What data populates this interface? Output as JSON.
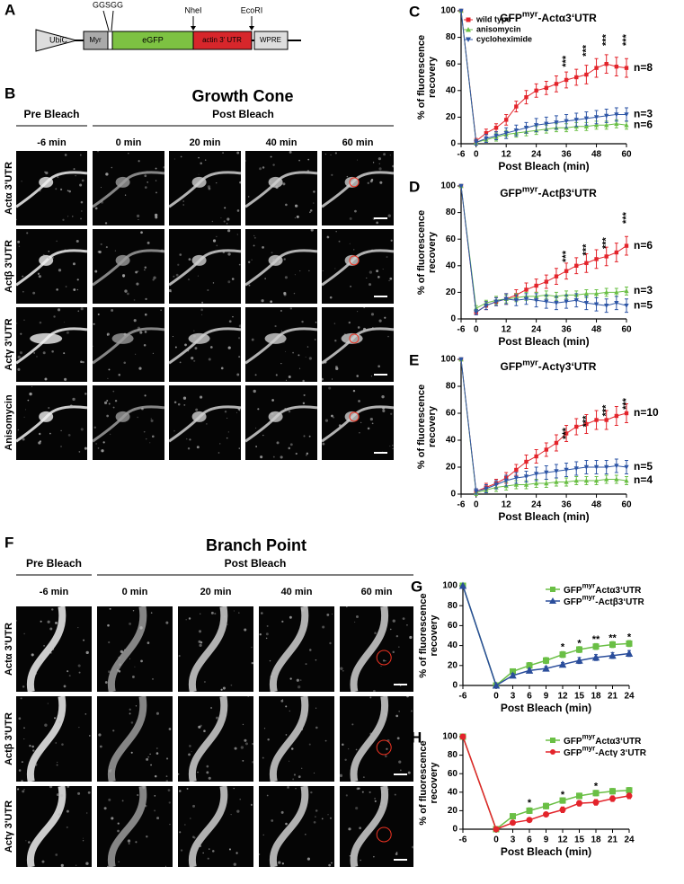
{
  "construct": {
    "letter": "A",
    "ubic": "UbiC",
    "myr": "Myr",
    "egfp": "eGFP",
    "utr": "actin 3' UTR",
    "wpre": "WPRE",
    "linker": "GGSGG",
    "nhei": "NheI",
    "ecori": "EcoRI"
  },
  "growth_cone": {
    "letter": "B",
    "title": "Growth Cone",
    "pre": "Pre Bleach",
    "post": "Post Bleach",
    "times": [
      "-6 min",
      "0 min",
      "20 min",
      "40 min",
      "60 min"
    ],
    "rows": [
      "Actα 3'UTR",
      "Actβ 3'UTR",
      "Actγ 3'UTR",
      "Anisomycin"
    ]
  },
  "branch_point": {
    "letter": "F",
    "title": "Branch Point",
    "pre": "Pre Bleach",
    "post": "Post Bleach",
    "times": [
      "-6 min",
      "0 min",
      "20 min",
      "40 min",
      "60 min"
    ],
    "rows": [
      "Actα 3'UTR",
      "Actβ 3'UTR",
      "Actγ 3'UTR"
    ]
  },
  "chart_data": [
    {
      "type": "line",
      "letter": "C",
      "title": {
        "base": "GFP",
        "sup": "myr",
        "rest": "-Actα3‘UTR"
      },
      "ylabel": [
        "% of fluorescence",
        "recovery"
      ],
      "xlabel": "Post Bleach (min)",
      "x": [
        -6,
        0,
        4,
        8,
        12,
        16,
        20,
        24,
        28,
        32,
        36,
        40,
        44,
        48,
        52,
        56,
        60
      ],
      "xlim": [
        -6,
        60
      ],
      "xticks": [
        -6,
        0,
        12,
        24,
        36,
        48,
        60
      ],
      "ylim": [
        0,
        100
      ],
      "yticks": [
        0,
        20,
        40,
        60,
        80,
        100
      ],
      "legend": "upper left",
      "series": [
        {
          "name": "wild type",
          "color": "#e3242b",
          "marker": "square",
          "n_label": "n=8",
          "values": [
            100,
            2,
            8,
            12,
            18,
            28,
            35,
            40,
            42,
            45,
            48,
            50,
            52,
            57,
            60,
            58,
            57
          ],
          "errors": [
            0,
            2,
            3,
            3,
            4,
            4,
            5,
            5,
            5,
            6,
            6,
            6,
            7,
            7,
            7,
            7,
            7
          ]
        },
        {
          "name": "anisomycin",
          "color": "#6abf45",
          "marker": "triangle-up",
          "n_label": "n=6",
          "values": [
            100,
            1,
            3,
            5,
            7,
            8,
            9,
            10,
            11,
            12,
            12,
            13,
            13,
            14,
            14,
            15,
            14
          ],
          "errors": [
            0,
            2,
            2,
            3,
            3,
            3,
            3,
            3,
            3,
            3,
            3,
            3,
            3,
            3,
            3,
            3,
            3
          ]
        },
        {
          "name": "cycloheximide",
          "color": "#2e56a6",
          "marker": "triangle-down",
          "n_label": "n=3",
          "values": [
            100,
            1,
            4,
            6,
            8,
            10,
            12,
            14,
            15,
            16,
            17,
            18,
            19,
            20,
            21,
            22,
            22
          ],
          "errors": [
            0,
            2,
            3,
            3,
            4,
            4,
            4,
            5,
            5,
            5,
            5,
            5,
            5,
            5,
            5,
            5,
            5
          ]
        }
      ],
      "annotations": [
        {
          "x": 36,
          "y": 62,
          "text": "***"
        },
        {
          "x": 44,
          "y": 70,
          "text": "***"
        },
        {
          "x": 52,
          "y": 78,
          "text": "***"
        },
        {
          "x": 60,
          "y": 78,
          "text": "***"
        }
      ]
    },
    {
      "type": "line",
      "letter": "D",
      "title": {
        "base": "GFP",
        "sup": "myr",
        "rest": "-Actβ3‘UTR"
      },
      "ylabel": [
        "% of fluorescence",
        "recovery"
      ],
      "xlabel": "Post Bleach (min)",
      "x": [
        -6,
        0,
        4,
        8,
        12,
        16,
        20,
        24,
        28,
        32,
        36,
        40,
        44,
        48,
        52,
        56,
        60
      ],
      "xlim": [
        -6,
        60
      ],
      "xticks": [
        -6,
        0,
        12,
        24,
        36,
        48,
        60
      ],
      "ylim": [
        0,
        100
      ],
      "yticks": [
        0,
        20,
        40,
        60,
        80,
        100
      ],
      "series": [
        {
          "name": "wild type",
          "color": "#e3242b",
          "marker": "square",
          "n_label": "n=6",
          "values": [
            100,
            5,
            10,
            13,
            15,
            18,
            22,
            25,
            28,
            32,
            36,
            40,
            42,
            45,
            47,
            50,
            55
          ],
          "errors": [
            0,
            2,
            3,
            3,
            4,
            4,
            5,
            5,
            5,
            6,
            6,
            6,
            7,
            7,
            7,
            7,
            7
          ]
        },
        {
          "name": "anisomycin",
          "color": "#6abf45",
          "marker": "triangle-up",
          "n_label": "n=3",
          "values": [
            100,
            8,
            12,
            14,
            15,
            16,
            17,
            17,
            18,
            17,
            18,
            18,
            19,
            19,
            20,
            20,
            21
          ],
          "errors": [
            0,
            2,
            2,
            3,
            3,
            3,
            3,
            3,
            3,
            3,
            3,
            3,
            3,
            3,
            3,
            3,
            3
          ]
        },
        {
          "name": "cycloheximide",
          "color": "#2e56a6",
          "marker": "triangle-down",
          "n_label": "n=5",
          "values": [
            100,
            5,
            10,
            13,
            15,
            14,
            15,
            14,
            13,
            12,
            13,
            14,
            12,
            11,
            10,
            12,
            10
          ],
          "errors": [
            0,
            2,
            3,
            3,
            4,
            4,
            4,
            5,
            5,
            5,
            5,
            5,
            5,
            5,
            5,
            5,
            5
          ]
        }
      ],
      "annotations": [
        {
          "x": 36,
          "y": 47,
          "text": "***"
        },
        {
          "x": 44,
          "y": 52,
          "text": "***"
        },
        {
          "x": 52,
          "y": 57,
          "text": "***"
        },
        {
          "x": 60,
          "y": 76,
          "text": "***"
        }
      ]
    },
    {
      "type": "line",
      "letter": "E",
      "title": {
        "base": "GFP",
        "sup": "myr",
        "rest": "-Actγ3‘UTR"
      },
      "ylabel": [
        "% of fluorescence",
        "recovery"
      ],
      "xlabel": "Post Bleach (min)",
      "x": [
        -6,
        0,
        4,
        8,
        12,
        16,
        20,
        24,
        28,
        32,
        36,
        40,
        44,
        48,
        52,
        56,
        60
      ],
      "xlim": [
        -6,
        60
      ],
      "xticks": [
        -6,
        0,
        12,
        24,
        36,
        48,
        60
      ],
      "ylim": [
        0,
        100
      ],
      "yticks": [
        0,
        20,
        40,
        60,
        80,
        100
      ],
      "series": [
        {
          "name": "wild type",
          "color": "#e3242b",
          "marker": "square",
          "n_label": "n=10",
          "values": [
            100,
            2,
            5,
            8,
            12,
            18,
            24,
            28,
            33,
            38,
            45,
            50,
            52,
            55,
            55,
            58,
            60
          ],
          "errors": [
            0,
            2,
            3,
            3,
            4,
            4,
            5,
            5,
            5,
            6,
            6,
            6,
            7,
            7,
            7,
            7,
            7
          ]
        },
        {
          "name": "anisomycin",
          "color": "#6abf45",
          "marker": "triangle-up",
          "n_label": "n=4",
          "values": [
            100,
            1,
            3,
            5,
            6,
            7,
            7,
            8,
            8,
            9,
            9,
            10,
            10,
            10,
            11,
            11,
            10
          ],
          "errors": [
            0,
            2,
            2,
            3,
            3,
            3,
            3,
            3,
            3,
            3,
            3,
            3,
            3,
            3,
            3,
            3,
            3
          ]
        },
        {
          "name": "cycloheximide",
          "color": "#2e56a6",
          "marker": "triangle-down",
          "n_label": "n=5",
          "values": [
            100,
            2,
            4,
            7,
            10,
            12,
            13,
            15,
            16,
            17,
            18,
            19,
            20,
            20,
            20,
            21,
            20
          ],
          "errors": [
            0,
            2,
            3,
            3,
            4,
            4,
            4,
            5,
            5,
            5,
            5,
            5,
            5,
            5,
            5,
            5,
            5
          ]
        }
      ],
      "annotations": [
        {
          "x": 36,
          "y": 45,
          "text": "***"
        },
        {
          "x": 44,
          "y": 54,
          "text": "***"
        },
        {
          "x": 52,
          "y": 62,
          "text": "***"
        },
        {
          "x": 60,
          "y": 67,
          "text": "***"
        }
      ]
    },
    {
      "type": "line",
      "letter": "G",
      "ylabel": [
        "% of fluorescence",
        "recovery"
      ],
      "xlabel": "Post Bleach (min)",
      "x": [
        -6,
        0,
        3,
        6,
        9,
        12,
        15,
        18,
        21,
        24
      ],
      "xlim": [
        -6,
        24
      ],
      "xticks": [
        -6,
        0,
        3,
        6,
        9,
        12,
        15,
        18,
        21,
        24
      ],
      "ylim": [
        0,
        100
      ],
      "yticks": [
        0,
        20,
        40,
        60,
        80,
        100
      ],
      "legend": "upper right",
      "series": [
        {
          "name_parts": [
            "GFP",
            "myr",
            "Actα3‘UTR"
          ],
          "color": "#6abf45",
          "marker": "square",
          "values": [
            100,
            0,
            14,
            20,
            25,
            31,
            36,
            39,
            41,
            42
          ],
          "errors": [
            0,
            0,
            2,
            3,
            3,
            3,
            3,
            3,
            3,
            3
          ]
        },
        {
          "name_parts": [
            "GFP",
            "myr",
            "-Actβ3‘UTR"
          ],
          "color": "#2a4d9b",
          "marker": "triangle-up",
          "values": [
            100,
            0,
            10,
            15,
            17,
            21,
            25,
            28,
            30,
            32
          ],
          "errors": [
            0,
            0,
            2,
            2,
            2,
            2,
            3,
            3,
            3,
            3
          ]
        }
      ],
      "annotations": [
        {
          "x": 12,
          "y": 38,
          "text": "*"
        },
        {
          "x": 15,
          "y": 42,
          "text": "*"
        },
        {
          "x": 18,
          "y": 46,
          "text": "**"
        },
        {
          "x": 21,
          "y": 47,
          "text": "**"
        },
        {
          "x": 24,
          "y": 48,
          "text": "*"
        }
      ]
    },
    {
      "type": "line",
      "letter": "H",
      "ylabel": [
        "% of fluorescence",
        "recovery"
      ],
      "xlabel": "Post Bleach (min)",
      "x": [
        -6,
        0,
        3,
        6,
        9,
        12,
        15,
        18,
        21,
        24
      ],
      "xlim": [
        -6,
        24
      ],
      "xticks": [
        -6,
        0,
        3,
        6,
        9,
        12,
        15,
        18,
        21,
        24
      ],
      "ylim": [
        0,
        100
      ],
      "yticks": [
        0,
        20,
        40,
        60,
        80,
        100
      ],
      "legend": "upper right",
      "series": [
        {
          "name_parts": [
            "GFP",
            "myr",
            "Actα3‘UTR"
          ],
          "color": "#6abf45",
          "marker": "square",
          "values": [
            100,
            0,
            14,
            20,
            25,
            31,
            36,
            39,
            41,
            42
          ],
          "errors": [
            0,
            0,
            2,
            3,
            3,
            3,
            3,
            3,
            3,
            3
          ]
        },
        {
          "name_parts": [
            "GFP",
            "myr",
            "-Actγ 3‘UTR"
          ],
          "color": "#e3242b",
          "marker": "circle",
          "values": [
            100,
            0,
            7,
            10,
            16,
            21,
            28,
            29,
            33,
            36
          ],
          "errors": [
            0,
            0,
            2,
            2,
            2,
            3,
            3,
            3,
            3,
            3
          ]
        }
      ],
      "annotations": [
        {
          "x": 6,
          "y": 28,
          "text": "*"
        },
        {
          "x": 12,
          "y": 37,
          "text": "*"
        },
        {
          "x": 18,
          "y": 46,
          "text": "*"
        }
      ]
    }
  ]
}
